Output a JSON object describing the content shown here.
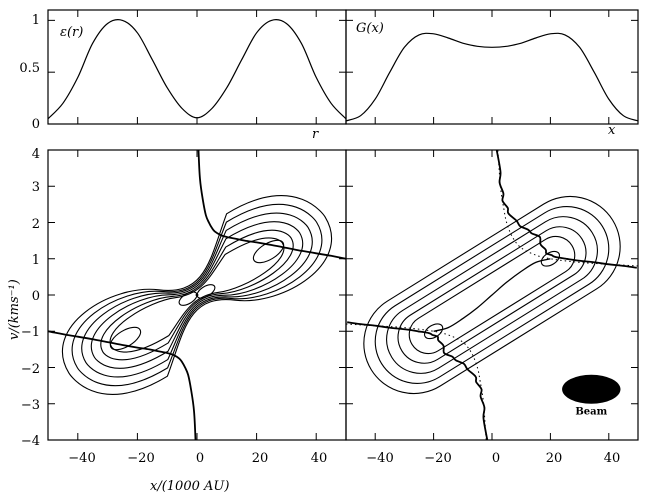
{
  "chart_data": [
    {
      "id": "epsilon",
      "type": "line",
      "panel_label": "ε(r)",
      "xlabel": "r",
      "ylabel": "",
      "ylim": [
        0,
        1.1
      ],
      "y_ticks": [
        "0",
        "0.5",
        "1"
      ],
      "y_tick_values": [
        0,
        0.5,
        1
      ],
      "series": [
        {
          "x": [
            -50,
            -45,
            -40,
            -35,
            -30,
            -25,
            -20,
            -15,
            -10,
            -5,
            0,
            5,
            10,
            15,
            20,
            25,
            30,
            35,
            40,
            45,
            50
          ],
          "y": [
            0.05,
            0.2,
            0.45,
            0.78,
            0.97,
            1.0,
            0.88,
            0.62,
            0.35,
            0.15,
            0.06,
            0.15,
            0.35,
            0.62,
            0.88,
            1.0,
            0.97,
            0.78,
            0.45,
            0.2,
            0.05
          ]
        }
      ]
    },
    {
      "id": "G",
      "type": "line",
      "panel_label": "G(x)",
      "xlabel": "x",
      "ylabel": "",
      "ylim": [
        0,
        1.1
      ],
      "series": [
        {
          "x": [
            -50,
            -45,
            -40,
            -35,
            -30,
            -25,
            -20,
            -15,
            -10,
            -5,
            0,
            5,
            10,
            15,
            20,
            25,
            30,
            35,
            40,
            45,
            50
          ],
          "y": [
            0.03,
            0.08,
            0.24,
            0.5,
            0.74,
            0.86,
            0.87,
            0.83,
            0.78,
            0.75,
            0.74,
            0.75,
            0.78,
            0.83,
            0.87,
            0.86,
            0.74,
            0.5,
            0.24,
            0.08,
            0.03
          ]
        }
      ]
    },
    {
      "id": "pv-left",
      "type": "line",
      "xlabel": "x/(1000 AU)",
      "ylabel": "v/(kms⁻¹)",
      "xlim": [
        -50,
        50
      ],
      "ylim": [
        -4,
        4
      ],
      "x_ticks": [
        "−40",
        "−20",
        "0",
        "20",
        "40"
      ],
      "x_tick_values": [
        -40,
        -20,
        0,
        20,
        40
      ],
      "y_ticks": [
        "−4",
        "−3",
        "−2",
        "−1",
        "0",
        "1",
        "2",
        "3",
        "4"
      ],
      "y_tick_values": [
        -4,
        -3,
        -2,
        -1,
        0,
        1,
        2,
        3,
        4
      ],
      "contour_centers": [
        [
          -24,
          -1.2
        ],
        [
          0,
          0
        ],
        [
          24,
          1.2
        ]
      ],
      "rotation_curve": {
        "x": [
          0.5,
          1,
          2,
          3,
          4,
          5,
          6,
          8,
          10,
          13,
          16,
          20,
          25,
          30,
          35,
          40,
          45,
          50
        ],
        "y": [
          4.0,
          3.2,
          2.6,
          2.2,
          2.0,
          1.85,
          1.75,
          1.65,
          1.6,
          1.55,
          1.5,
          1.45,
          1.38,
          1.3,
          1.22,
          1.15,
          1.08,
          1.0
        ]
      },
      "peak_dot": [
        0,
        0
      ]
    },
    {
      "id": "pv-right",
      "type": "line",
      "xlim": [
        -50,
        50
      ],
      "ylim": [
        -4,
        4
      ],
      "x_ticks": [
        "−40",
        "−20",
        "0",
        "20",
        "40"
      ],
      "x_tick_values": [
        -40,
        -20,
        0,
        20,
        40
      ],
      "beam_label": "Beam",
      "beam_center": [
        34,
        -2.6
      ],
      "beam_size": [
        10,
        0.4
      ],
      "ridge_line": {
        "x": [
          -20,
          -15,
          -10,
          -5,
          0,
          5,
          10,
          15,
          20
        ],
        "y": [
          -1.0,
          -0.9,
          -0.65,
          -0.35,
          0.0,
          0.35,
          0.65,
          0.9,
          1.0
        ]
      },
      "rotation_curve": {
        "x": [
          2,
          2.5,
          3,
          3.5,
          4,
          5,
          6,
          8,
          10,
          12,
          14,
          16,
          17,
          18,
          19,
          20,
          22,
          25,
          30,
          35,
          40,
          45,
          50
        ],
        "y": [
          4.0,
          3.4,
          3.1,
          2.8,
          2.6,
          2.4,
          2.25,
          2.05,
          1.9,
          1.8,
          1.7,
          1.6,
          1.4,
          1.25,
          1.15,
          1.1,
          1.05,
          1.0,
          0.95,
          0.9,
          0.85,
          0.8,
          0.75
        ]
      },
      "dotted_curve": {
        "x": [
          -50,
          -40,
          -30,
          -20,
          -15,
          -10,
          -7,
          -5,
          -4,
          -3,
          -2.5,
          -2
        ],
        "y": [
          -0.8,
          -0.85,
          -0.9,
          -1.0,
          -1.1,
          -1.3,
          -1.6,
          -2.0,
          -2.4,
          -2.9,
          -3.4,
          -4.0
        ]
      }
    }
  ]
}
